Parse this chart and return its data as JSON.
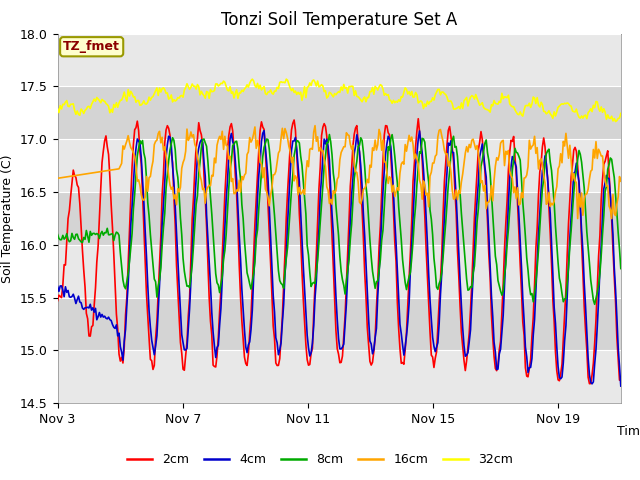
{
  "title": "Tonzi Soil Temperature Set A",
  "xlabel": "Time",
  "ylabel": "Soil Temperature (C)",
  "ylim": [
    14.5,
    18.0
  ],
  "yticks": [
    14.5,
    15.0,
    15.5,
    16.0,
    16.5,
    17.0,
    17.5,
    18.0
  ],
  "xtick_labels": [
    "Nov 3",
    "Nov 7",
    "Nov 11",
    "Nov 15",
    "Nov 19"
  ],
  "annotation_text": "TZ_fmet",
  "annotation_color": "#8B0000",
  "annotation_bg": "#FFFFCC",
  "annotation_border": "#999900",
  "colors": {
    "2cm": "#FF0000",
    "4cm": "#0000CC",
    "8cm": "#00AA00",
    "16cm": "#FFA500",
    "32cm": "#FFFF00"
  },
  "line_width": 1.2,
  "n_days": 18,
  "n_points": 432
}
